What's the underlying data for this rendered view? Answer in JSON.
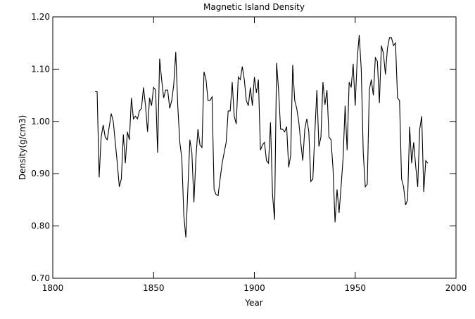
{
  "chart_data": {
    "type": "line",
    "title": "Magnetic Island Density",
    "xlabel": "Year",
    "ylabel": "Density(g/cm3)",
    "xlim": [
      1800,
      2000
    ],
    "xticks": [
      1800,
      1850,
      1900,
      1950,
      2000
    ],
    "ylim": [
      0.7,
      1.2
    ],
    "yticks": [
      {
        "value": 0.7,
        "label": "0.70"
      },
      {
        "value": 0.8,
        "label": "0.80"
      },
      {
        "value": 0.9,
        "label": "0.90"
      },
      {
        "value": 1.0,
        "label": "1.00"
      },
      {
        "value": 1.1,
        "label": "1.10"
      },
      {
        "value": 1.2,
        "label": "1.20"
      }
    ],
    "color": "#000000",
    "x": [
      1821,
      1822,
      1823,
      1824,
      1825,
      1826,
      1827,
      1828,
      1829,
      1830,
      1831,
      1832,
      1833,
      1834,
      1835,
      1836,
      1837,
      1838,
      1839,
      1840,
      1841,
      1842,
      1843,
      1844,
      1845,
      1846,
      1847,
      1848,
      1849,
      1850,
      1851,
      1852,
      1853,
      1854,
      1855,
      1856,
      1857,
      1858,
      1859,
      1860,
      1861,
      1862,
      1863,
      1864,
      1865,
      1866,
      1867,
      1868,
      1869,
      1870,
      1871,
      1872,
      1873,
      1874,
      1875,
      1876,
      1877,
      1878,
      1879,
      1880,
      1881,
      1882,
      1883,
      1884,
      1885,
      1886,
      1887,
      1888,
      1889,
      1890,
      1891,
      1892,
      1893,
      1894,
      1895,
      1896,
      1897,
      1898,
      1899,
      1900,
      1901,
      1902,
      1903,
      1904,
      1905,
      1906,
      1907,
      1908,
      1909,
      1910,
      1911,
      1912,
      1913,
      1914,
      1915,
      1916,
      1917,
      1918,
      1919,
      1920,
      1921,
      1922,
      1923,
      1924,
      1925,
      1926,
      1927,
      1928,
      1929,
      1930,
      1931,
      1932,
      1933,
      1934,
      1935,
      1936,
      1937,
      1938,
      1939,
      1940,
      1941,
      1942,
      1943,
      1944,
      1945,
      1946,
      1947,
      1948,
      1949,
      1950,
      1951,
      1952,
      1953,
      1954,
      1955,
      1956,
      1957,
      1958,
      1959,
      1960,
      1961,
      1962,
      1963,
      1964,
      1965,
      1966,
      1967,
      1968,
      1969,
      1970,
      1971,
      1972,
      1973,
      1974,
      1975,
      1976,
      1977,
      1978,
      1979,
      1980,
      1981,
      1982,
      1983,
      1984,
      1985,
      1986
    ],
    "values": [
      1.057,
      1.057,
      0.893,
      0.97,
      0.993,
      0.97,
      0.965,
      0.99,
      1.015,
      1.0,
      0.96,
      0.92,
      0.875,
      0.89,
      0.975,
      0.92,
      0.98,
      0.965,
      1.045,
      1.005,
      1.01,
      1.005,
      1.02,
      1.025,
      1.065,
      1.03,
      0.98,
      1.045,
      1.03,
      1.065,
      1.06,
      0.94,
      1.12,
      1.08,
      1.045,
      1.06,
      1.06,
      1.025,
      1.04,
      1.07,
      1.133,
      1.03,
      0.96,
      0.93,
      0.82,
      0.778,
      0.87,
      0.965,
      0.94,
      0.845,
      0.93,
      0.985,
      0.955,
      0.95,
      1.095,
      1.08,
      1.04,
      1.04,
      1.047,
      0.87,
      0.86,
      0.858,
      0.89,
      0.92,
      0.94,
      0.96,
      1.02,
      1.02,
      1.075,
      1.01,
      0.995,
      1.085,
      1.08,
      1.105,
      1.08,
      1.04,
      1.03,
      1.065,
      1.03,
      1.085,
      1.055,
      1.08,
      0.945,
      0.955,
      0.96,
      0.925,
      0.92,
      0.998,
      0.86,
      0.812,
      1.112,
      1.06,
      0.985,
      0.985,
      0.98,
      0.99,
      0.912,
      0.935,
      1.108,
      1.04,
      1.025,
      1.0,
      0.96,
      0.925,
      0.985,
      1.005,
      0.98,
      0.885,
      0.89,
      0.98,
      1.06,
      0.952,
      0.97,
      1.075,
      1.032,
      1.06,
      0.97,
      0.965,
      0.91,
      0.807,
      0.87,
      0.825,
      0.875,
      0.93,
      1.03,
      0.945,
      1.075,
      1.065,
      1.11,
      1.03,
      1.12,
      1.165,
      1.1,
      0.94,
      0.875,
      0.88,
      1.06,
      1.08,
      1.05,
      1.122,
      1.115,
      1.035,
      1.145,
      1.13,
      1.09,
      1.14,
      1.16,
      1.16,
      1.145,
      1.15,
      1.045,
      1.04,
      0.89,
      0.875,
      0.84,
      0.85,
      0.99,
      0.92,
      0.96,
      0.915,
      0.875,
      0.985,
      1.01,
      0.865,
      0.925,
      0.92
    ]
  }
}
